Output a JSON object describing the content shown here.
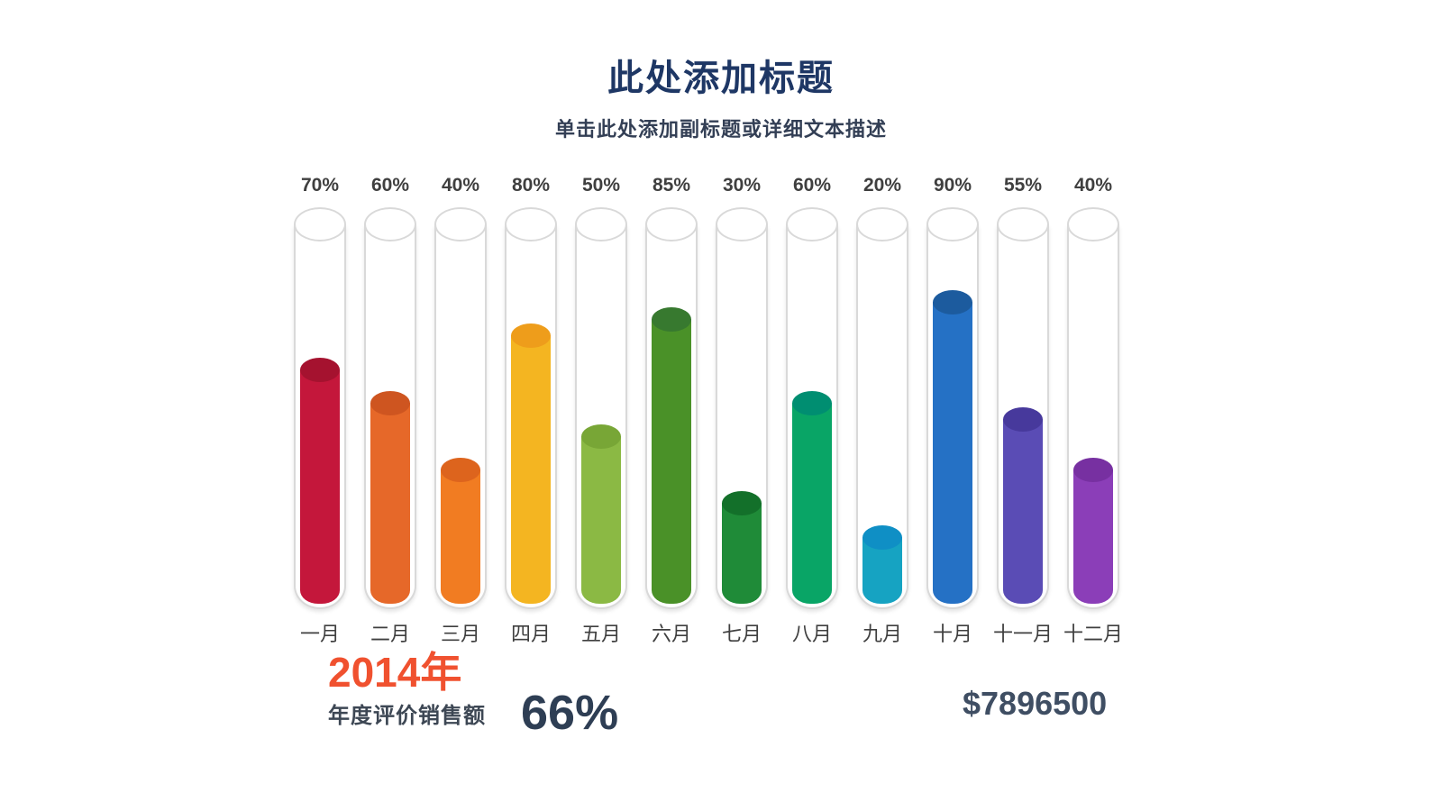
{
  "header": {
    "title": "此处添加标题",
    "subtitle": "单击此处添加副标题或详细文本描述"
  },
  "chart_data": {
    "type": "bar",
    "style": "vertical-cylinder-test-tubes",
    "title": "此处添加标题",
    "subtitle": "单击此处添加副标题或详细文本描述",
    "categories": [
      "一月",
      "二月",
      "三月",
      "四月",
      "五月",
      "六月",
      "七月",
      "八月",
      "九月",
      "十月",
      "十一月",
      "十二月"
    ],
    "values": [
      70,
      60,
      40,
      80,
      50,
      85,
      30,
      60,
      20,
      90,
      55,
      40
    ],
    "value_labels": [
      "70%",
      "60%",
      "40%",
      "80%",
      "50%",
      "85%",
      "30%",
      "60%",
      "20%",
      "90%",
      "55%",
      "40%"
    ],
    "unit": "%",
    "ylim": [
      0,
      100
    ],
    "grid": false,
    "legend": "none",
    "bar_colors": [
      "#C4173B",
      "#E66829",
      "#F17C22",
      "#F4B521",
      "#8BB944",
      "#4A9128",
      "#1F8B38",
      "#09A566",
      "#16A3C2",
      "#2571C5",
      "#5A4CB5",
      "#8B3EB8"
    ],
    "bar_top_colors": [
      "#A5122F",
      "#CE5520",
      "#DD641D",
      "#EE9D1B",
      "#78A636",
      "#37792F",
      "#13702A",
      "#008E71",
      "#0F8FC5",
      "#1C5B9E",
      "#47399C",
      "#7730A1"
    ],
    "tube_outline_color": "#D9D9D9"
  },
  "footer": {
    "year": "2014年",
    "year_caption": "年度评价销售额",
    "percent": "66%",
    "amount": "$7896500"
  },
  "colors": {
    "title": "#1E3765",
    "subtitle": "#333F55",
    "value_label": "#3F3F3F",
    "category_label": "#3F3F3F",
    "year": "#F0512F",
    "stat_dark": "#2E3E54"
  }
}
